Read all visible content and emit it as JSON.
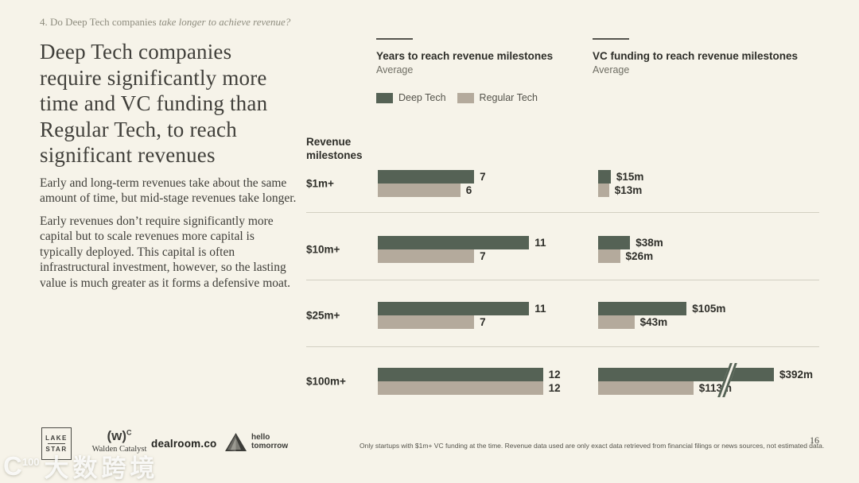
{
  "page": {
    "background": "#f6f3e9",
    "number": "16"
  },
  "eyebrow": {
    "regular": "4. Do Deep Tech companies ",
    "italic": "take longer to achieve revenue?"
  },
  "headline": "Deep Tech companies require significantly more time and VC funding than Regular Tech, to reach significant revenues",
  "paragraphs": [
    "Early and long-term revenues take about the same amount of time, but mid-stage revenues take longer.",
    "Early revenues don’t require significantly more capital but to scale revenues more capital is typically deployed. This capital is often infrastructural investment, however, so the lasting value is much greater as it forms a defensive moat."
  ],
  "labels": {
    "revenue_milestones": "Revenue milestones"
  },
  "colors": {
    "deep_tech": "#556255",
    "regular_tech": "#b4aa9c",
    "background": "#f6f3e9"
  },
  "chart_data": [
    {
      "type": "bar",
      "orientation": "horizontal",
      "title": "Years to reach revenue milestones",
      "subtitle": "Average",
      "categories": [
        "$1m+",
        "$10m+",
        "$25m+",
        "$100m+"
      ],
      "series": [
        {
          "name": "Deep Tech",
          "values": [
            7,
            11,
            11,
            12
          ]
        },
        {
          "name": "Regular Tech",
          "values": [
            6,
            7,
            7,
            12
          ]
        }
      ],
      "unit": "years",
      "legend_position": "top",
      "grid": false
    },
    {
      "type": "bar",
      "orientation": "horizontal",
      "title": "VC funding to reach revenue milestones",
      "subtitle": "Average",
      "categories": [
        "$1m+",
        "$10m+",
        "$25m+",
        "$100m+"
      ],
      "series": [
        {
          "name": "Deep Tech",
          "values": [
            15,
            38,
            105,
            392
          ],
          "labels": [
            "$15m",
            "$38m",
            "$105m",
            "$392m"
          ]
        },
        {
          "name": "Regular Tech",
          "values": [
            13,
            26,
            43,
            113
          ],
          "labels": [
            "$13m",
            "$26m",
            "$43m",
            "$113m"
          ]
        }
      ],
      "unit": "$m",
      "axis_break": {
        "series": "Deep Tech",
        "category": "$100m+"
      },
      "grid": false
    }
  ],
  "footer": {
    "note": "Only startups with $1m+ VC funding at the time. Revenue data used are only exact data retrieved from financial filings or news sources, not estimated data.",
    "page": "16"
  },
  "logos": {
    "lakestar": {
      "line1": "LAKE",
      "line2": "STAR"
    },
    "walden": {
      "mark": "(w)",
      "sup": "C",
      "label": "Walden Catalyst"
    },
    "dealroom": {
      "label": "dealroom.co"
    },
    "hello": {
      "line1": "hello",
      "line2": "tomorrow"
    }
  },
  "watermark": {
    "icon_letter": "C",
    "icon_sup": "100",
    "text": "大数跨境"
  }
}
